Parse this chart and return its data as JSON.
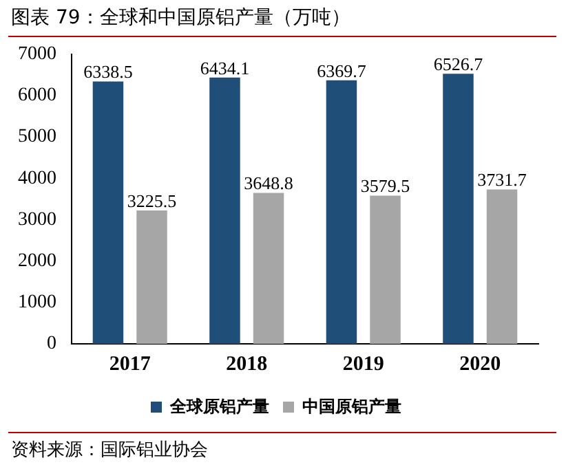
{
  "chart_data": {
    "type": "bar",
    "title": "图表 79：全球和中国原铝产量（万吨）",
    "categories": [
      "2017",
      "2018",
      "2019",
      "2020"
    ],
    "series": [
      {
        "name": "全球原铝产量",
        "color": "#1f4e79",
        "values": [
          6338.5,
          6434.1,
          6369.7,
          6526.7
        ]
      },
      {
        "name": "中国原铝产量",
        "color": "#a6a6a6",
        "values": [
          3225.5,
          3648.8,
          3579.5,
          3731.7
        ]
      }
    ],
    "ylim": [
      0,
      7000
    ],
    "yticks": [
      0,
      1000,
      2000,
      3000,
      4000,
      5000,
      6000,
      7000
    ],
    "grid": false,
    "legend": "bottom",
    "data_labels": true,
    "annotations": [
      "资料来源：国际铝业协会"
    ]
  }
}
